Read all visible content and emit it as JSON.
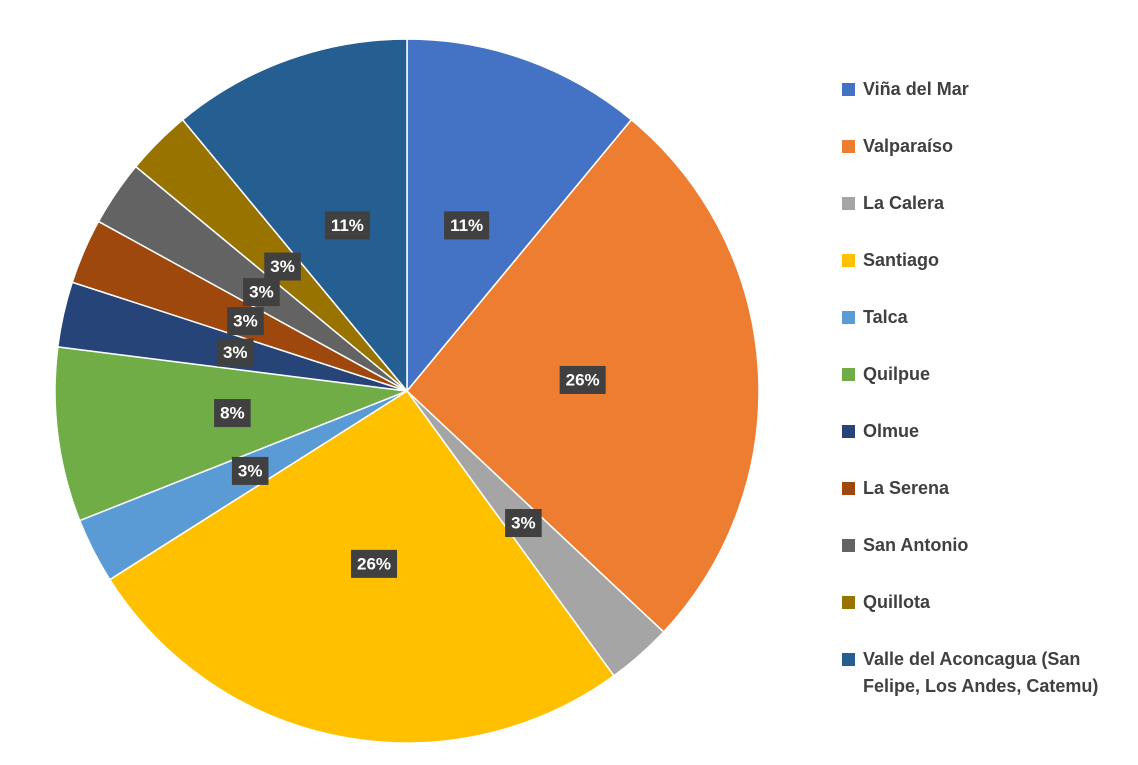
{
  "chart_data": {
    "type": "pie",
    "categories": [
      "Viña del Mar",
      "Valparaíso",
      "La Calera",
      "Santiago",
      "Talca",
      "Quilpue",
      "Olmue",
      "La Serena",
      "San Antonio",
      "Quillota",
      "Valle del Aconcagua (San Felipe, Los Andes, Catemu)"
    ],
    "values": [
      11,
      26,
      3,
      26,
      3,
      8,
      3,
      3,
      3,
      3,
      11
    ],
    "value_labels": [
      "11%",
      "26%",
      "3%",
      "26%",
      "3%",
      "8%",
      "3%",
      "3%",
      "3%",
      "3%",
      "11%"
    ],
    "colors": [
      "#4472c4",
      "#ed7d31",
      "#a5a5a5",
      "#ffc000",
      "#5b9bd5",
      "#70ad47",
      "#264478",
      "#9e480e",
      "#636363",
      "#997300",
      "#255e91"
    ],
    "legend": "right"
  }
}
